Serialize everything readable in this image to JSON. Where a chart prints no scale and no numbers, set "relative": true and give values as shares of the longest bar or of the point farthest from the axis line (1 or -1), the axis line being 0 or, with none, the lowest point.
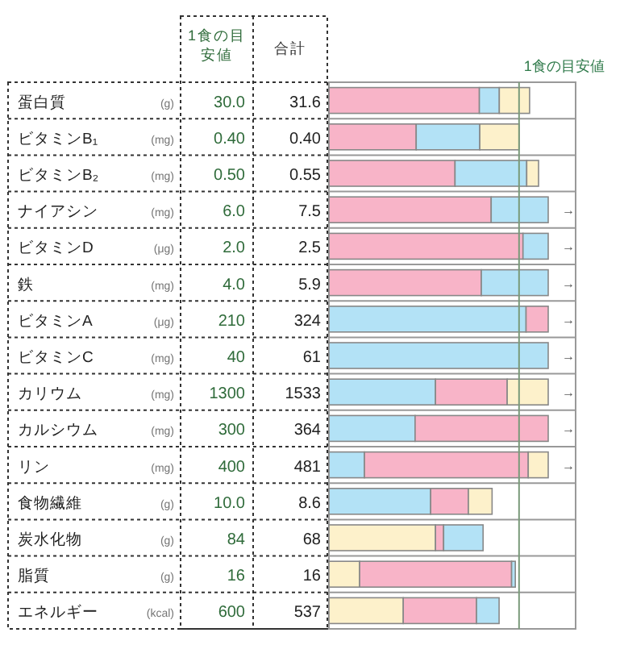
{
  "chart_data": {
    "type": "bar",
    "orientation": "horizontal",
    "stacked": true,
    "relative": true,
    "categories": [
      "蛋白質",
      "ビタミンB₁",
      "ビタミンB₂",
      "ナイアシン",
      "ビタミンD",
      "鉄",
      "ビタミンA",
      "ビタミンC",
      "カリウム",
      "カルシウム",
      "リン",
      "食物繊維",
      "炭水化物",
      "脂質",
      "エネルギー"
    ],
    "series": [
      {
        "colors": [
          "#f8b4c8",
          "#f8b4c8",
          "#f8b4c8",
          "#f8b4c8",
          "#f8b4c8",
          "#f8b4c8",
          "#b3e2f6",
          "#b3e2f6",
          "#b3e2f6",
          "#b3e2f6",
          "#b3e2f6",
          "#b3e2f6",
          "#fdf1cb",
          "#fdf1cb",
          "#fdf1cb"
        ],
        "values": [
          0.686,
          0.398,
          0.575,
          0.74,
          0.885,
          0.695,
          0.899,
          1,
          0.486,
          0.393,
          0.162,
          0.464,
          0.486,
          0.14,
          0.339
        ]
      },
      {
        "colors": [
          "#b3e2f6",
          "#b3e2f6",
          "#b3e2f6",
          "#b3e2f6",
          "#b3e2f6",
          "#b3e2f6",
          "#f8b4c8",
          null,
          "#f8b4c8",
          "#f8b4c8",
          "#f8b4c8",
          "#f8b4c8",
          "#f8b4c8",
          "#f8b4c8",
          "#f8b4c8"
        ],
        "values": [
          0.091,
          0.29,
          0.327,
          0.26,
          0.115,
          0.305,
          0.101,
          null,
          0.327,
          0.607,
          0.747,
          0.172,
          0.037,
          0.693,
          0.334
        ]
      },
      {
        "colors": [
          "#fdf1cb",
          "#fdf1cb",
          "#fdf1cb",
          null,
          null,
          null,
          null,
          null,
          "#fdf1cb",
          null,
          "#fdf1cb",
          "#fdf1cb",
          "#b3e2f6",
          "#b3e2f6",
          "#b3e2f6"
        ],
        "values": [
          0.138,
          0.179,
          0.054,
          null,
          null,
          null,
          null,
          null,
          0.187,
          null,
          0.091,
          0.108,
          0.18,
          0.017,
          0.103
        ]
      }
    ],
    "ref_lines": [
      {
        "axis": "x",
        "value": 0.867,
        "label": "1食の目安値",
        "color": "#7a9a7a"
      }
    ],
    "annotations": [
      "1食の目安値",
      "合計",
      "(g)",
      "30.0",
      "31.6",
      "(mg)",
      "0.40",
      "0.40",
      "(mg)",
      "0.50",
      "0.55",
      "(mg)",
      "6.0",
      "7.5",
      "(μg)",
      "2.0",
      "2.5",
      "(mg)",
      "4.0",
      "5.9",
      "(μg)",
      "210",
      "324",
      "(mg)",
      "40",
      "61",
      "(mg)",
      "1300",
      "1533",
      "(mg)",
      "300",
      "364",
      "(mg)",
      "400",
      "481",
      "(g)",
      "10.0",
      "8.6",
      "(g)",
      "84",
      "68",
      "(g)",
      "16",
      "16",
      "(kcal)",
      "600",
      "537",
      "→",
      "→",
      "→",
      "→",
      "→",
      "→",
      "→",
      "→"
    ]
  }
}
